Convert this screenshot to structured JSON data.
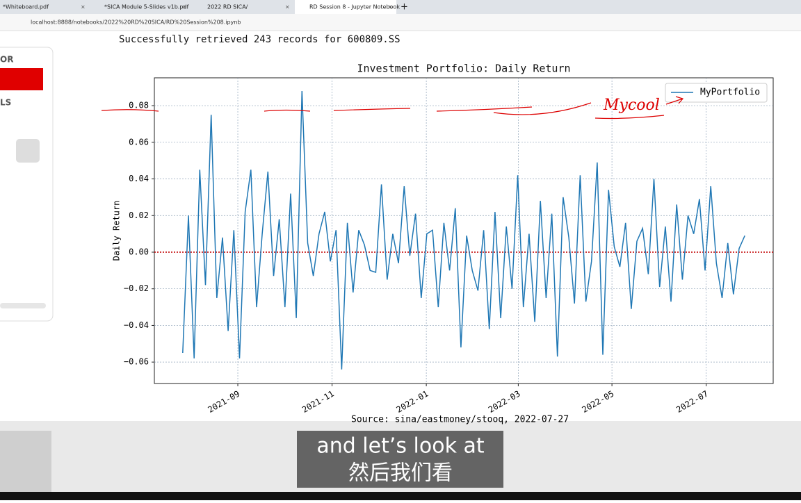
{
  "browser": {
    "tabs": [
      "*Whiteboard.pdf",
      "*SICA Module 5-Slides v1b.pdf",
      "2022 RD SICA/",
      "RD Session 8 - Jupyter Notebook"
    ],
    "url": "localhost:8888/notebooks/2022%20RD%20SICA/RD%20Session%208.ipynb"
  },
  "toolbar": {
    "labels": [
      "OR",
      "LS"
    ]
  },
  "notebook": {
    "output": "Successfully retrieved 243 records for 600809.SS"
  },
  "chart_data": {
    "type": "line",
    "title": "Investment Portfolio: Daily Return",
    "ylabel": "Daily Return",
    "source": "Source: sina/eastmoney/stooq, 2022-07-27",
    "annotation": "Mycool",
    "series": [
      {
        "name": "MyPortfolio",
        "color": "#1f77b4",
        "values": [
          -0.055,
          0.02,
          -0.058,
          0.045,
          -0.018,
          0.075,
          -0.025,
          0.008,
          -0.043,
          0.012,
          -0.058,
          0.022,
          0.045,
          -0.03,
          0.01,
          0.044,
          -0.013,
          0.018,
          -0.03,
          0.032,
          -0.036,
          0.088,
          0.005,
          -0.013,
          0.01,
          0.022,
          -0.005,
          0.012,
          -0.064,
          0.016,
          -0.022,
          0.012,
          0.004,
          -0.01,
          -0.011,
          0.037,
          -0.015,
          0.01,
          -0.006,
          0.036,
          -0.002,
          0.021,
          -0.025,
          0.01,
          0.012,
          -0.03,
          0.016,
          -0.01,
          0.024,
          -0.052,
          0.009,
          -0.01,
          -0.021,
          0.012,
          -0.042,
          0.022,
          -0.036,
          0.014,
          -0.02,
          0.042,
          -0.03,
          0.01,
          -0.038,
          0.028,
          -0.025,
          0.021,
          -0.057,
          0.03,
          0.008,
          -0.028,
          0.042,
          -0.027,
          -0.005,
          0.049,
          -0.056,
          0.034,
          0.003,
          -0.008,
          0.016,
          -0.031,
          0.006,
          0.013,
          -0.012,
          0.04,
          -0.019,
          0.014,
          -0.027,
          0.026,
          -0.015,
          0.02,
          0.01,
          0.029,
          -0.01,
          0.036,
          -0.006,
          -0.025,
          0.005,
          -0.023,
          0.002,
          0.009
        ]
      }
    ],
    "reference_line": {
      "value": 0,
      "color": "#c00000"
    },
    "xlim": [
      -5.0,
      104.0
    ],
    "xticks": [
      {
        "value": 9.7,
        "label": "2021-09"
      },
      {
        "value": 26.3,
        "label": "2021-11"
      },
      {
        "value": 42.9,
        "label": "2022-01"
      },
      {
        "value": 59.1,
        "label": "2022-03"
      },
      {
        "value": 75.6,
        "label": "2022-05"
      },
      {
        "value": 92.2,
        "label": "2022-07"
      }
    ],
    "ylim": [
      -0.0717,
      0.0952
    ],
    "yticks": [
      {
        "value": -0.06,
        "label": "−0.06"
      },
      {
        "value": -0.04,
        "label": "−0.04"
      },
      {
        "value": -0.02,
        "label": "−0.02"
      },
      {
        "value": 0,
        "label": "0.00"
      },
      {
        "value": 0.02,
        "label": "0.02"
      },
      {
        "value": 0.04,
        "label": "0.04"
      },
      {
        "value": 0.06,
        "label": "0.06"
      },
      {
        "value": 0.08,
        "label": "0.08"
      }
    ],
    "grid": true,
    "legend": "upper right"
  },
  "subtitles": [
    "and let’s look at",
    "然后我们看"
  ]
}
